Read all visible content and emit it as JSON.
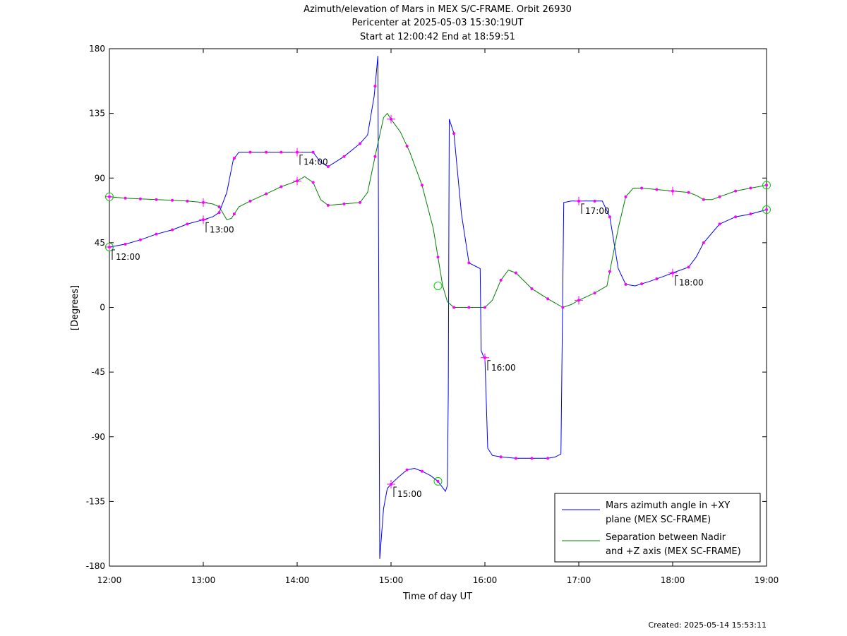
{
  "chart_data": {
    "type": "line",
    "title_lines": [
      "Azimuth/elevation of Mars in MEX S/C-FRAME.  Orbit 26930",
      "Pericenter at 2025-05-03 15:30:19UT",
      "Start at 12:00:42 End at 18:59:51"
    ],
    "xlabel": "Time of day UT",
    "ylabel": "[Degrees]",
    "xlim": [
      12.0,
      19.0
    ],
    "ylim": [
      -180,
      180
    ],
    "x_ticks": [
      12,
      13,
      14,
      15,
      16,
      17,
      18,
      19
    ],
    "x_tick_labels": [
      "12:00",
      "13:00",
      "14:00",
      "15:00",
      "16:00",
      "17:00",
      "18:00",
      "19:00"
    ],
    "y_ticks": [
      -180,
      -135,
      -90,
      -45,
      0,
      45,
      90,
      135,
      180
    ],
    "y_tick_labels": [
      "-180",
      "-135",
      "-90",
      "-45",
      "0",
      "45",
      "90",
      "135",
      "180"
    ],
    "legend_position": "bottom-right",
    "series": [
      {
        "name": "Mars azimuth angle in +XY plane (MEX SC-FRAME)",
        "legend_lines": [
          "Mars azimuth angle in +XY",
          "plane (MEX SC-FRAME)"
        ],
        "color": "#0000ff",
        "points": [
          [
            12.0,
            42
          ],
          [
            12.17,
            44
          ],
          [
            12.33,
            47
          ],
          [
            12.5,
            51
          ],
          [
            12.67,
            54
          ],
          [
            12.83,
            58
          ],
          [
            13.0,
            61
          ],
          [
            13.1,
            63
          ],
          [
            13.17,
            66
          ],
          [
            13.25,
            80
          ],
          [
            13.32,
            103
          ],
          [
            13.38,
            108
          ],
          [
            13.5,
            108
          ],
          [
            13.67,
            108
          ],
          [
            13.83,
            108
          ],
          [
            14.0,
            108
          ],
          [
            14.17,
            108
          ],
          [
            14.25,
            101
          ],
          [
            14.33,
            98
          ],
          [
            14.5,
            105
          ],
          [
            14.67,
            114
          ],
          [
            14.75,
            120
          ],
          [
            14.82,
            147
          ],
          [
            14.86,
            175
          ],
          [
            14.88,
            -175
          ],
          [
            14.92,
            -140
          ],
          [
            14.96,
            -126
          ],
          [
            15.0,
            -123
          ],
          [
            15.08,
            -118
          ],
          [
            15.17,
            -113
          ],
          [
            15.25,
            -112
          ],
          [
            15.33,
            -114
          ],
          [
            15.42,
            -117
          ],
          [
            15.5,
            -121
          ],
          [
            15.58,
            -128
          ],
          [
            15.6,
            -124
          ],
          [
            15.61,
            -60
          ],
          [
            15.62,
            131
          ],
          [
            15.67,
            121
          ],
          [
            15.75,
            65
          ],
          [
            15.83,
            31
          ],
          [
            15.92,
            28
          ],
          [
            15.95,
            27
          ],
          [
            15.96,
            -30
          ],
          [
            15.99,
            -35
          ],
          [
            16.0,
            -35
          ],
          [
            16.03,
            -98
          ],
          [
            16.08,
            -103
          ],
          [
            16.17,
            -104
          ],
          [
            16.33,
            -105
          ],
          [
            16.5,
            -105
          ],
          [
            16.67,
            -105
          ],
          [
            16.75,
            -104
          ],
          [
            16.81,
            -102
          ],
          [
            16.84,
            73
          ],
          [
            16.92,
            74
          ],
          [
            17.0,
            74
          ],
          [
            17.17,
            74
          ],
          [
            17.25,
            74
          ],
          [
            17.33,
            63
          ],
          [
            17.42,
            27
          ],
          [
            17.5,
            16
          ],
          [
            17.6,
            15
          ],
          [
            17.75,
            18
          ],
          [
            17.92,
            22
          ],
          [
            18.0,
            24
          ],
          [
            18.17,
            28
          ],
          [
            18.25,
            35
          ],
          [
            18.33,
            45
          ],
          [
            18.5,
            58
          ],
          [
            18.67,
            63
          ],
          [
            18.83,
            65
          ],
          [
            19.0,
            68
          ]
        ],
        "markers": [
          12.0,
          12.17,
          12.33,
          12.5,
          12.67,
          12.83,
          13.0,
          13.17,
          13.33,
          13.5,
          13.67,
          13.83,
          14.0,
          14.17,
          14.33,
          14.5,
          14.67,
          14.83,
          15.0,
          15.17,
          15.33,
          15.5,
          15.67,
          15.83,
          16.0,
          16.17,
          16.33,
          16.5,
          16.67,
          16.83,
          17.0,
          17.17,
          17.33,
          17.5,
          17.67,
          17.83,
          18.0,
          18.17,
          18.33,
          18.5,
          18.67,
          18.83,
          19.0
        ]
      },
      {
        "name": "Separation between Nadir and +Z axis (MEX SC-FRAME)",
        "legend_lines": [
          "Separation between Nadir",
          "and +Z axis (MEX SC-FRAME)"
        ],
        "color": "#008000",
        "points": [
          [
            12.0,
            77
          ],
          [
            12.17,
            76
          ],
          [
            12.33,
            75.5
          ],
          [
            12.5,
            75
          ],
          [
            12.67,
            74.5
          ],
          [
            12.83,
            74
          ],
          [
            13.0,
            73
          ],
          [
            13.1,
            72
          ],
          [
            13.17,
            70
          ],
          [
            13.25,
            61
          ],
          [
            13.3,
            62
          ],
          [
            13.38,
            70
          ],
          [
            13.5,
            74
          ],
          [
            13.67,
            79
          ],
          [
            13.83,
            84
          ],
          [
            14.0,
            88
          ],
          [
            14.08,
            91
          ],
          [
            14.17,
            87
          ],
          [
            14.25,
            75
          ],
          [
            14.33,
            71
          ],
          [
            14.5,
            72
          ],
          [
            14.67,
            73
          ],
          [
            14.75,
            80
          ],
          [
            14.83,
            105
          ],
          [
            14.92,
            132
          ],
          [
            14.96,
            135
          ],
          [
            15.0,
            131
          ],
          [
            15.1,
            122
          ],
          [
            15.2,
            108
          ],
          [
            15.33,
            85
          ],
          [
            15.45,
            55
          ],
          [
            15.55,
            15
          ],
          [
            15.6,
            4
          ],
          [
            15.67,
            0
          ],
          [
            15.83,
            0
          ],
          [
            16.0,
            0
          ],
          [
            16.08,
            5
          ],
          [
            16.17,
            19
          ],
          [
            16.25,
            26
          ],
          [
            16.33,
            24
          ],
          [
            16.5,
            13
          ],
          [
            16.67,
            6
          ],
          [
            16.83,
            0
          ],
          [
            16.92,
            2
          ],
          [
            17.0,
            5
          ],
          [
            17.17,
            10
          ],
          [
            17.3,
            15
          ],
          [
            17.42,
            55
          ],
          [
            17.5,
            77
          ],
          [
            17.58,
            83
          ],
          [
            17.67,
            83
          ],
          [
            17.83,
            82
          ],
          [
            18.0,
            81
          ],
          [
            18.17,
            80
          ],
          [
            18.25,
            78
          ],
          [
            18.33,
            75
          ],
          [
            18.42,
            75
          ],
          [
            18.5,
            77
          ],
          [
            18.67,
            81
          ],
          [
            18.83,
            83
          ],
          [
            19.0,
            85
          ]
        ],
        "markers": [
          12.0,
          12.17,
          12.33,
          12.5,
          12.67,
          12.83,
          13.0,
          13.17,
          13.33,
          13.5,
          13.67,
          13.83,
          14.0,
          14.17,
          14.33,
          14.5,
          14.67,
          14.83,
          15.0,
          15.17,
          15.33,
          15.5,
          15.67,
          15.83,
          16.0,
          16.17,
          16.33,
          16.5,
          16.67,
          16.83,
          17.0,
          17.17,
          17.33,
          17.5,
          17.67,
          17.83,
          18.0,
          18.17,
          18.33,
          18.5,
          18.67,
          18.83,
          19.0
        ]
      }
    ],
    "hour_marks": [
      {
        "x": 12.0,
        "y": 42,
        "label": "12:00"
      },
      {
        "x": 13.0,
        "y": 61,
        "label": "13:00"
      },
      {
        "x": 14.0,
        "y": 108,
        "label": "14:00"
      },
      {
        "x": 15.0,
        "y": -123,
        "label": "15:00"
      },
      {
        "x": 16.0,
        "y": -35,
        "label": "16:00"
      },
      {
        "x": 17.0,
        "y": 74,
        "label": "17:00"
      },
      {
        "x": 18.0,
        "y": 24,
        "label": "18:00"
      }
    ],
    "plus_marks": [
      [
        12.0,
        42
      ],
      [
        13.0,
        61
      ],
      [
        14.0,
        108
      ],
      [
        15.0,
        -123
      ],
      [
        16.0,
        -35
      ],
      [
        17.0,
        74
      ],
      [
        18.0,
        24
      ],
      [
        12.0,
        77
      ],
      [
        13.0,
        73
      ],
      [
        14.0,
        88
      ],
      [
        15.0,
        131
      ],
      [
        17.0,
        5
      ],
      [
        18.0,
        81
      ]
    ],
    "circle_marks": [
      [
        12.0,
        77
      ],
      [
        12.0,
        42
      ],
      [
        15.5,
        15
      ],
      [
        15.5,
        -121
      ],
      [
        19.0,
        85
      ],
      [
        19.0,
        68
      ]
    ],
    "colors": {
      "marker": "#ff00ff",
      "circle": "#00cc00",
      "axes": "#000000"
    }
  },
  "footer": {
    "created": "Created: 2025-05-14 15:53:11"
  }
}
